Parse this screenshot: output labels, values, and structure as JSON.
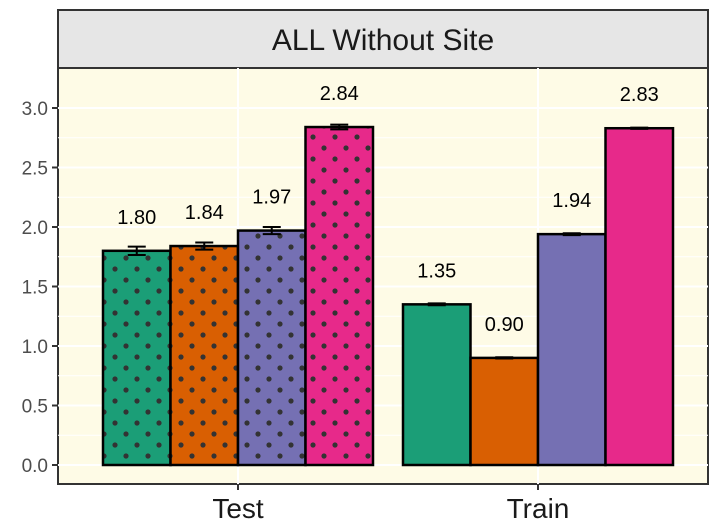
{
  "chart_data": {
    "type": "bar",
    "title": "ALL Without Site",
    "categories": [
      "Test",
      "Train"
    ],
    "xlabel": "",
    "ylabel": "",
    "ylim": [
      0,
      3.2
    ],
    "yticks": [
      0.0,
      0.5,
      1.0,
      1.5,
      2.0,
      2.5,
      3.0
    ],
    "ytick_labels": [
      "0.0",
      "0.5",
      "1.0",
      "1.5",
      "2.0",
      "2.5",
      "3.0"
    ],
    "grid": true,
    "legend": "none",
    "colors": [
      "#1b9e77",
      "#d95f02",
      "#7570b3",
      "#e7298a"
    ],
    "groups": [
      {
        "category": "Test",
        "pattern": "dots",
        "values": [
          1.8,
          1.84,
          1.97,
          2.84
        ],
        "errors": [
          0.035,
          0.03,
          0.03,
          0.02
        ],
        "labels": [
          "1.80",
          "1.84",
          "1.97",
          "2.84"
        ]
      },
      {
        "category": "Train",
        "pattern": "none",
        "values": [
          1.35,
          0.9,
          1.94,
          2.83
        ],
        "errors": [
          0.008,
          0.005,
          0.008,
          0.005
        ],
        "labels": [
          "1.35",
          "0.90",
          "1.94",
          "2.83"
        ]
      }
    ]
  }
}
